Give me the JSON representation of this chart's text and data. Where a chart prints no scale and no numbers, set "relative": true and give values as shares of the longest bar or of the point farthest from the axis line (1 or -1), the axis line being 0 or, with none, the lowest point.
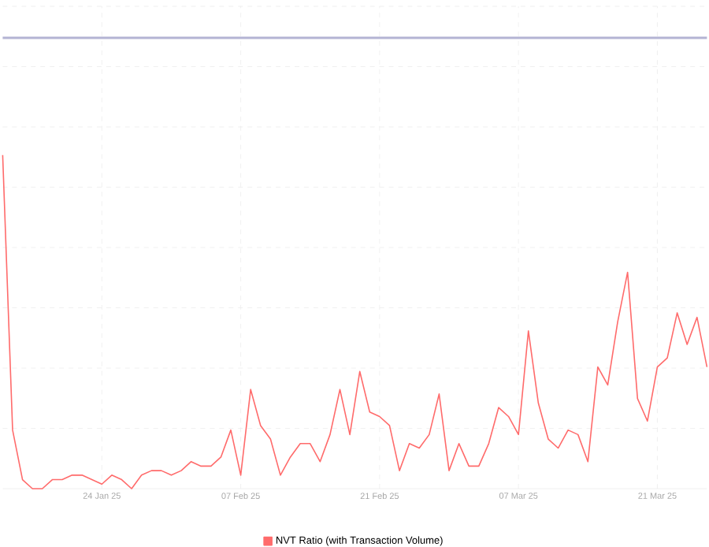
{
  "chart_data": {
    "type": "line",
    "relative": true,
    "grid": true,
    "legend": "bottom",
    "x": [
      "2025-01-14",
      "2025-01-15",
      "2025-01-16",
      "2025-01-17",
      "2025-01-18",
      "2025-01-19",
      "2025-01-20",
      "2025-01-21",
      "2025-01-22",
      "2025-01-23",
      "2025-01-24",
      "2025-01-25",
      "2025-01-26",
      "2025-01-27",
      "2025-01-28",
      "2025-01-29",
      "2025-01-30",
      "2025-01-31",
      "2025-02-01",
      "2025-02-02",
      "2025-02-03",
      "2025-02-04",
      "2025-02-05",
      "2025-02-06",
      "2025-02-07",
      "2025-02-08",
      "2025-02-09",
      "2025-02-10",
      "2025-02-11",
      "2025-02-12",
      "2025-02-13",
      "2025-02-14",
      "2025-02-15",
      "2025-02-16",
      "2025-02-17",
      "2025-02-18",
      "2025-02-19",
      "2025-02-20",
      "2025-02-21",
      "2025-02-22",
      "2025-02-23",
      "2025-02-24",
      "2025-02-25",
      "2025-02-26",
      "2025-02-27",
      "2025-02-28",
      "2025-03-01",
      "2025-03-02",
      "2025-03-03",
      "2025-03-04",
      "2025-03-05",
      "2025-03-06",
      "2025-03-07",
      "2025-03-08",
      "2025-03-09",
      "2025-03-10",
      "2025-03-11",
      "2025-03-12",
      "2025-03-13",
      "2025-03-14",
      "2025-03-15",
      "2025-03-16",
      "2025-03-17",
      "2025-03-18",
      "2025-03-19",
      "2025-03-20",
      "2025-03-21",
      "2025-03-22",
      "2025-03-23",
      "2025-03-24",
      "2025-03-25",
      "2025-03-26"
    ],
    "xlim": [
      "2025-01-14",
      "2025-03-26"
    ],
    "xticks": [
      {
        "value": "2025-01-24",
        "label": "24 Jan 25"
      },
      {
        "value": "2025-02-07",
        "label": "07 Feb 25"
      },
      {
        "value": "2025-02-21",
        "label": "21 Feb 25"
      },
      {
        "value": "2025-03-07",
        "label": "07 Mar 25"
      },
      {
        "value": "2025-03-21",
        "label": "21 Mar 25"
      }
    ],
    "series": [
      {
        "name": "NVT Ratio (with Transaction Volume)",
        "color": "#ff6b6b",
        "values": [
          0.74,
          0.13,
          0.02,
          0.0,
          0.0,
          0.02,
          0.02,
          0.03,
          0.03,
          0.02,
          0.01,
          0.03,
          0.02,
          0.0,
          0.03,
          0.04,
          0.04,
          0.03,
          0.04,
          0.06,
          0.05,
          0.05,
          0.07,
          0.13,
          0.03,
          0.22,
          0.14,
          0.11,
          0.03,
          0.07,
          0.1,
          0.1,
          0.06,
          0.12,
          0.22,
          0.12,
          0.26,
          0.17,
          0.16,
          0.14,
          0.04,
          0.1,
          0.09,
          0.12,
          0.21,
          0.04,
          0.1,
          0.05,
          0.05,
          0.1,
          0.18,
          0.16,
          0.12,
          0.35,
          0.19,
          0.11,
          0.09,
          0.13,
          0.12,
          0.06,
          0.27,
          0.23,
          0.37,
          0.48,
          0.2,
          0.15,
          0.27,
          0.29,
          0.39,
          0.32,
          0.38,
          0.27
        ]
      },
      {
        "color": "#b4b4d4",
        "values": [
          1,
          1,
          1,
          1,
          1,
          1,
          1,
          1,
          1,
          1,
          1,
          1,
          1,
          1,
          1,
          1,
          1,
          1,
          1,
          1,
          1,
          1,
          1,
          1,
          1,
          1,
          1,
          1,
          1,
          1,
          1,
          1,
          1,
          1,
          1,
          1,
          1,
          1,
          1,
          1,
          1,
          1,
          1,
          1,
          1,
          1,
          1,
          1,
          1,
          1,
          1,
          1,
          1,
          1,
          1,
          1,
          1,
          1,
          1,
          1,
          1,
          1,
          1,
          1,
          1,
          1,
          1,
          1,
          1,
          1,
          1,
          1
        ]
      }
    ]
  }
}
